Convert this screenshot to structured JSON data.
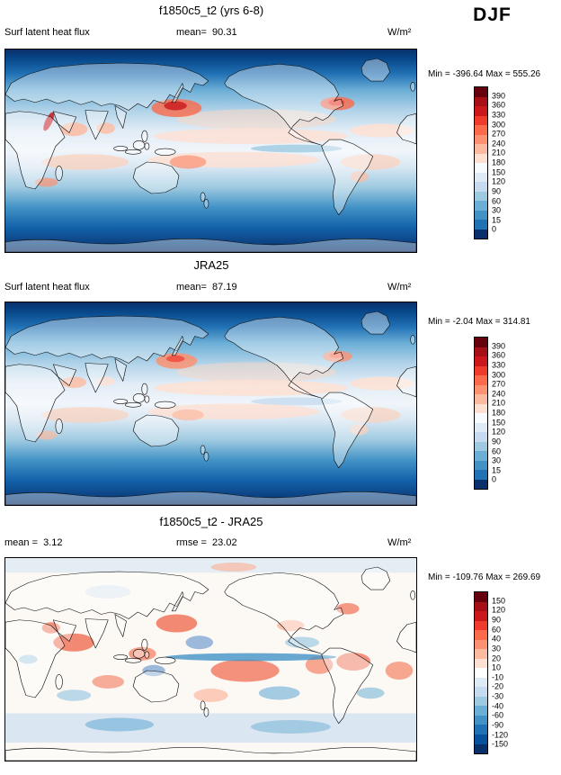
{
  "season": "DJF",
  "panels": [
    {
      "title": "f1850c5_t2 (yrs 6-8)",
      "variable": "Surf latent heat flux",
      "mean": "mean=  90.31",
      "units": "W/m²",
      "minmax": "Min = -396.64 Max = 555.26",
      "colorbar": {
        "ticks": [
          "390",
          "360",
          "330",
          "300",
          "270",
          "240",
          "210",
          "180",
          "150",
          "120",
          "90",
          "60",
          "30",
          "15",
          "0"
        ],
        "colors": [
          "#67000d",
          "#a50f15",
          "#cb181d",
          "#ef3b2c",
          "#fb6a4a",
          "#fc9272",
          "#fcbba1",
          "#fee0d2",
          "#f7fbff",
          "#deebf7",
          "#c6dbef",
          "#9ecae1",
          "#6baed6",
          "#4292c6",
          "#2171b5",
          "#08306b"
        ]
      }
    },
    {
      "title": "JRA25",
      "variable": "Surf latent heat flux",
      "mean": "mean=  87.19",
      "units": "W/m²",
      "minmax": "Min = -2.04 Max = 314.81",
      "colorbar": {
        "ticks": [
          "390",
          "360",
          "330",
          "300",
          "270",
          "240",
          "210",
          "180",
          "150",
          "120",
          "90",
          "60",
          "30",
          "15",
          "0"
        ],
        "colors": [
          "#67000d",
          "#a50f15",
          "#cb181d",
          "#ef3b2c",
          "#fb6a4a",
          "#fc9272",
          "#fcbba1",
          "#fee0d2",
          "#f7fbff",
          "#deebf7",
          "#c6dbef",
          "#9ecae1",
          "#6baed6",
          "#4292c6",
          "#2171b5",
          "#08306b"
        ]
      }
    },
    {
      "title": "f1850c5_t2 - JRA25",
      "mean": "mean =  3.12",
      "rmse": "rmse =  23.02",
      "units": "W/m²",
      "minmax": "Min = -109.76 Max = 269.69",
      "colorbar": {
        "ticks": [
          "150",
          "120",
          "90",
          "60",
          "40",
          "30",
          "20",
          "10",
          "-10",
          "-20",
          "-30",
          "-40",
          "-60",
          "-90",
          "-120",
          "-150"
        ],
        "colors": [
          "#67000d",
          "#a50f15",
          "#cb181d",
          "#ef3b2c",
          "#fb6a4a",
          "#fc9272",
          "#fcbba1",
          "#fee0d2",
          "#ffffff",
          "#deebf7",
          "#c6dbef",
          "#9ecae1",
          "#6baed6",
          "#4292c6",
          "#2171b5",
          "#08519c",
          "#08306b"
        ]
      }
    }
  ],
  "chart_data": [
    {
      "type": "heatmap",
      "title": "f1850c5_t2 (yrs 6-8)",
      "subtitle": "Surf latent heat flux, DJF, global lat-lon map",
      "units": "W/m²",
      "stats": {
        "mean": 90.31,
        "min": -396.64,
        "max": 555.26
      },
      "levels": [
        0,
        15,
        30,
        60,
        90,
        120,
        150,
        180,
        210,
        240,
        270,
        300,
        330,
        360,
        390
      ],
      "palette": [
        "#08306b",
        "#2171b5",
        "#4292c6",
        "#6baed6",
        "#9ecae1",
        "#c6dbef",
        "#deebf7",
        "#f7fbff",
        "#fee0d2",
        "#fcbba1",
        "#fc9272",
        "#fb6a4a",
        "#ef3b2c",
        "#cb181d",
        "#a50f15",
        "#67000d"
      ],
      "legend_position": "right",
      "grid": false
    },
    {
      "type": "heatmap",
      "title": "JRA25",
      "subtitle": "Surf latent heat flux, DJF, global lat-lon map",
      "units": "W/m²",
      "stats": {
        "mean": 87.19,
        "min": -2.04,
        "max": 314.81
      },
      "levels": [
        0,
        15,
        30,
        60,
        90,
        120,
        150,
        180,
        210,
        240,
        270,
        300,
        330,
        360,
        390
      ],
      "palette": [
        "#08306b",
        "#2171b5",
        "#4292c6",
        "#6baed6",
        "#9ecae1",
        "#c6dbef",
        "#deebf7",
        "#f7fbff",
        "#fee0d2",
        "#fcbba1",
        "#fc9272",
        "#fb6a4a",
        "#ef3b2c",
        "#cb181d",
        "#a50f15",
        "#67000d"
      ],
      "legend_position": "right",
      "grid": false
    },
    {
      "type": "heatmap",
      "title": "f1850c5_t2 - JRA25",
      "subtitle": "Difference map, DJF, global lat-lon map",
      "units": "W/m²",
      "stats": {
        "mean": 3.12,
        "rmse": 23.02,
        "min": -109.76,
        "max": 269.69
      },
      "levels": [
        -150,
        -120,
        -90,
        -60,
        -40,
        -30,
        -20,
        -10,
        10,
        20,
        30,
        40,
        60,
        90,
        120,
        150
      ],
      "palette": [
        "#08306b",
        "#08519c",
        "#2171b5",
        "#4292c6",
        "#6baed6",
        "#9ecae1",
        "#c6dbef",
        "#deebf7",
        "#ffffff",
        "#fee0d2",
        "#fcbba1",
        "#fc9272",
        "#fb6a4a",
        "#ef3b2c",
        "#cb181d",
        "#a50f15",
        "#67000d"
      ],
      "legend_position": "right",
      "grid": false
    }
  ]
}
